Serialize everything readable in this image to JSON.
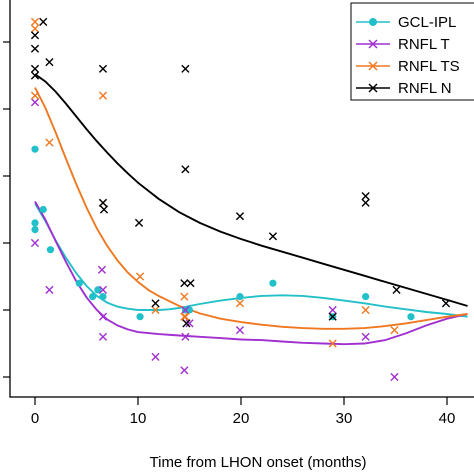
{
  "chart_data": {
    "type": "scatter",
    "xlabel": "Time from LHON onset (months)",
    "ylabel": "",
    "xlim": [
      -1.5,
      42
    ],
    "ylim": [
      -2.5,
      53
    ],
    "x_ticks": [
      0,
      10,
      20,
      30,
      40
    ],
    "y_ticks": [
      0,
      10,
      20,
      30,
      40,
      50
    ],
    "grid": false,
    "legend_position": "top-right",
    "series": [
      {
        "name": "GCL-IPL",
        "color": "#22c0c8",
        "marker": "circle",
        "points": [
          [
            0,
            34
          ],
          [
            0,
            23
          ],
          [
            0,
            22
          ],
          [
            0.8,
            25
          ],
          [
            1.5,
            19
          ],
          [
            4.3,
            14
          ],
          [
            5.6,
            12
          ],
          [
            6.1,
            13
          ],
          [
            6.6,
            12
          ],
          [
            10.2,
            9
          ],
          [
            14.6,
            10
          ],
          [
            15.0,
            10
          ],
          [
            19.9,
            12
          ],
          [
            23.1,
            14
          ],
          [
            28.9,
            9
          ],
          [
            32.1,
            12
          ],
          [
            36.5,
            9
          ]
        ],
        "curve": [
          [
            0,
            25.9
          ],
          [
            1,
            23.3
          ],
          [
            2,
            20.4
          ],
          [
            3,
            17.8
          ],
          [
            4,
            15.5
          ],
          [
            5,
            13.6
          ],
          [
            6,
            12.1
          ],
          [
            7,
            11.1
          ],
          [
            8,
            10.5
          ],
          [
            9,
            10.2
          ],
          [
            10,
            10
          ],
          [
            11,
            10
          ],
          [
            12,
            10
          ],
          [
            13,
            10.1
          ],
          [
            14,
            10.3
          ],
          [
            15,
            10.6
          ],
          [
            16,
            10.9
          ],
          [
            18,
            11.4
          ],
          [
            20,
            11.8
          ],
          [
            22,
            12.1
          ],
          [
            24,
            12.2
          ],
          [
            26,
            12.1
          ],
          [
            28,
            11.8
          ],
          [
            30,
            11.4
          ],
          [
            32,
            11
          ],
          [
            34,
            10.5
          ],
          [
            36,
            10.1
          ],
          [
            38,
            9.7
          ],
          [
            40,
            9.4
          ],
          [
            42,
            9
          ]
        ]
      },
      {
        "name": "RNFL T",
        "color": "#a030d0",
        "marker": "x",
        "points": [
          [
            0,
            41
          ],
          [
            0,
            20
          ],
          [
            1.4,
            13
          ],
          [
            6.5,
            16
          ],
          [
            6.6,
            13
          ],
          [
            6.6,
            6
          ],
          [
            6.6,
            9
          ],
          [
            11.7,
            3
          ],
          [
            14.5,
            1
          ],
          [
            14.6,
            10
          ],
          [
            14.6,
            6
          ],
          [
            15.0,
            8
          ],
          [
            19.9,
            7
          ],
          [
            28.9,
            10
          ],
          [
            32.1,
            6
          ],
          [
            34.9,
            0
          ]
        ],
        "curve": [
          [
            0,
            26.2
          ],
          [
            1,
            23.5
          ],
          [
            2,
            20.3
          ],
          [
            3,
            17.2
          ],
          [
            4,
            14.3
          ],
          [
            5,
            11.9
          ],
          [
            6,
            10
          ],
          [
            7,
            8.6
          ],
          [
            8,
            7.7
          ],
          [
            9,
            7.1
          ],
          [
            10,
            6.7
          ],
          [
            12,
            6.4
          ],
          [
            14,
            6.2
          ],
          [
            16,
            6
          ],
          [
            18,
            5.8
          ],
          [
            20,
            5.6
          ],
          [
            22,
            5.5
          ],
          [
            24,
            5.3
          ],
          [
            26,
            5.1
          ],
          [
            28,
            5
          ],
          [
            30,
            4.9
          ],
          [
            32,
            5
          ],
          [
            34,
            5.5
          ],
          [
            36,
            6.5
          ],
          [
            38,
            7.7
          ],
          [
            40,
            8.7
          ],
          [
            42,
            9.4
          ]
        ]
      },
      {
        "name": "RNFL TS",
        "color": "#f07820",
        "marker": "x",
        "points": [
          [
            0,
            53
          ],
          [
            0,
            52
          ],
          [
            0,
            42
          ],
          [
            1.4,
            35
          ],
          [
            6.6,
            26
          ],
          [
            6.6,
            42
          ],
          [
            10.2,
            15
          ],
          [
            11.7,
            10
          ],
          [
            14.5,
            9
          ],
          [
            14.5,
            12
          ],
          [
            14.6,
            9
          ],
          [
            19.9,
            11
          ],
          [
            28.9,
            5
          ],
          [
            32.1,
            10
          ],
          [
            34.9,
            7
          ]
        ],
        "curve": [
          [
            0,
            43.2
          ],
          [
            1,
            40.2
          ],
          [
            2,
            36.5
          ],
          [
            3,
            32.6
          ],
          [
            4,
            28.8
          ],
          [
            5,
            25.3
          ],
          [
            6,
            22.2
          ],
          [
            7,
            19.6
          ],
          [
            8,
            17.4
          ],
          [
            9,
            15.6
          ],
          [
            10,
            14.2
          ],
          [
            11,
            13
          ],
          [
            12,
            12.1
          ],
          [
            14,
            10.6
          ],
          [
            16,
            9.5
          ],
          [
            18,
            8.7
          ],
          [
            20,
            8.2
          ],
          [
            22,
            7.8
          ],
          [
            24,
            7.5
          ],
          [
            26,
            7.3
          ],
          [
            28,
            7.2
          ],
          [
            30,
            7.2
          ],
          [
            32,
            7.3
          ],
          [
            34,
            7.6
          ],
          [
            36,
            8
          ],
          [
            38,
            8.5
          ],
          [
            40,
            9
          ],
          [
            42,
            9.4
          ]
        ]
      },
      {
        "name": "RNFL N",
        "color": "#000000",
        "marker": "x",
        "points": [
          [
            0,
            51
          ],
          [
            0,
            49
          ],
          [
            0,
            46
          ],
          [
            0,
            45
          ],
          [
            0.8,
            53
          ],
          [
            1.4,
            47
          ],
          [
            6.6,
            26
          ],
          [
            6.6,
            46
          ],
          [
            6.7,
            25
          ],
          [
            10.1,
            23
          ],
          [
            11.7,
            11
          ],
          [
            14.5,
            14
          ],
          [
            14.6,
            31
          ],
          [
            14.6,
            46
          ],
          [
            14.7,
            8
          ],
          [
            15.1,
            14
          ],
          [
            19.9,
            24
          ],
          [
            23.1,
            21
          ],
          [
            28.9,
            9
          ],
          [
            32.1,
            27
          ],
          [
            32.1,
            26
          ],
          [
            35.1,
            13
          ],
          [
            39.9,
            11
          ]
        ],
        "curve": [
          [
            0,
            45.2
          ],
          [
            1,
            44.1
          ],
          [
            2,
            42.6
          ],
          [
            3,
            40.8
          ],
          [
            4,
            38.9
          ],
          [
            5,
            37
          ],
          [
            6,
            35.2
          ],
          [
            7,
            33.5
          ],
          [
            8,
            31.9
          ],
          [
            9,
            30.4
          ],
          [
            10,
            29
          ],
          [
            12,
            26.6
          ],
          [
            14,
            24.6
          ],
          [
            16,
            23
          ],
          [
            18,
            21.7
          ],
          [
            20,
            20.6
          ],
          [
            22,
            19.6
          ],
          [
            24,
            18.7
          ],
          [
            26,
            17.8
          ],
          [
            28,
            16.9
          ],
          [
            30,
            16
          ],
          [
            32,
            15.1
          ],
          [
            34,
            14.2
          ],
          [
            36,
            13.3
          ],
          [
            38,
            12.4
          ],
          [
            40,
            11.5
          ],
          [
            42,
            10.6
          ]
        ]
      }
    ]
  }
}
